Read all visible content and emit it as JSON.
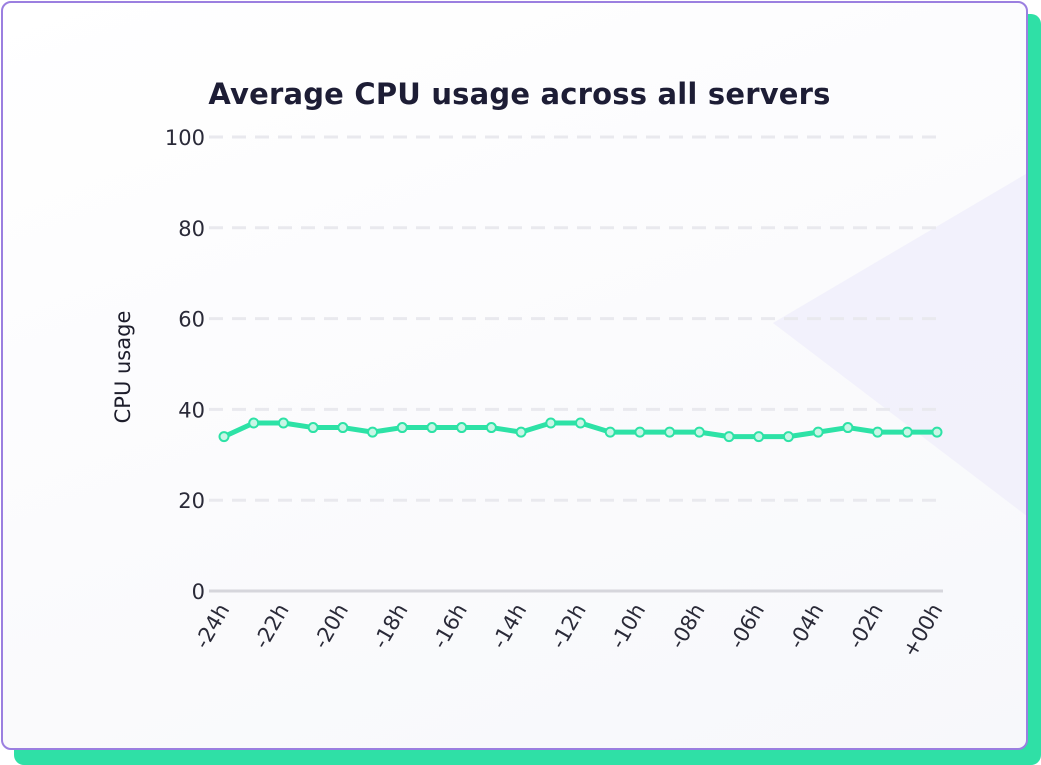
{
  "chart_data": {
    "type": "line",
    "title": "Average CPU usage across all servers",
    "xlabel": "",
    "ylabel": "CPU usage",
    "ylim": [
      0,
      100
    ],
    "y_ticks": [
      "0",
      "20",
      "40",
      "60",
      "80",
      "100"
    ],
    "x_tick_labels": [
      "-24h",
      "-22h",
      "-20h",
      "-18h",
      "-16h",
      "-14h",
      "-12h",
      "-10h",
      "-08h",
      "-06h",
      "-04h",
      "-02h",
      "+00h"
    ],
    "x_range_hours": [
      -24,
      0
    ],
    "grid": true,
    "series": [
      {
        "name": "CPU usage",
        "color": "#2de2a6",
        "x_hours": [
          -24,
          -23,
          -22,
          -21,
          -20,
          -19,
          -18,
          -17,
          -16,
          -15,
          -14,
          -13,
          -12,
          -11,
          -10,
          -9,
          -8,
          -7,
          -6,
          -5,
          -4,
          -3,
          -2,
          -1,
          0
        ],
        "values": [
          34,
          37,
          37,
          36,
          36,
          35,
          36,
          36,
          36,
          36,
          35,
          37,
          37,
          35,
          35,
          35,
          35,
          34,
          34,
          34,
          35,
          36,
          35,
          35,
          35
        ]
      }
    ]
  },
  "colors": {
    "card_border": "#9b7fe0",
    "card_shadow": "#2fe0a6",
    "grid": "#e9e9ee",
    "axis": "#d6d6dc"
  }
}
